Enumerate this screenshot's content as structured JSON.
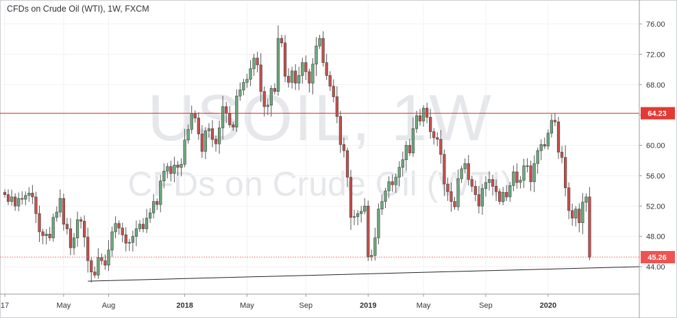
{
  "header": {
    "title": "CFDs on Crude Oil (WTI), 1W, FXCM"
  },
  "watermark": {
    "symbol": "USOIL, 1W",
    "name": "CFDs on Crude Oil (WTI)"
  },
  "chart_data": {
    "type": "candlestick",
    "title": "CFDs on Crude Oil (WTI), 1W, FXCM",
    "symbol": "USOIL",
    "interval": "1W",
    "source": "FXCM",
    "ylim": [
      40.5,
      78.0
    ],
    "y_ticks": [
      "76.00",
      "72.00",
      "68.00",
      "64.00",
      "60.00",
      "56.00",
      "52.00",
      "48.00",
      "44.00"
    ],
    "x_ticks": [
      {
        "label": "17",
        "index": 0,
        "bold": false
      },
      {
        "label": "May",
        "index": 17,
        "bold": false
      },
      {
        "label": "Aug",
        "index": 30,
        "bold": false
      },
      {
        "label": "2018",
        "index": 52,
        "bold": true
      },
      {
        "label": "May",
        "index": 70,
        "bold": false
      },
      {
        "label": "Sep",
        "index": 87,
        "bold": false
      },
      {
        "label": "2019",
        "index": 105,
        "bold": true
      },
      {
        "label": "May",
        "index": 121,
        "bold": false
      },
      {
        "label": "Sep",
        "index": 139,
        "bold": false
      },
      {
        "label": "2020",
        "index": 157,
        "bold": true
      }
    ],
    "up_color": "#6aaa7d",
    "down_color": "#c8504b",
    "wick_color": "#555555",
    "resistance": {
      "value": 64.23,
      "label": "64.23",
      "color": "#e53935"
    },
    "last_price": {
      "value": 45.26,
      "label": "45.26",
      "color": "#ef5350"
    },
    "trendline": {
      "from": {
        "index": 24,
        "value": 42.1
      },
      "to": {
        "index": 165,
        "value": 44.0
      },
      "color": "#222222"
    },
    "close_series": [
      53.5,
      52.6,
      53.2,
      52.0,
      53.0,
      52.9,
      53.4,
      53.7,
      53.2,
      51.0,
      48.6,
      48.1,
      48.3,
      47.8,
      50.5,
      51.2,
      53.0,
      49.6,
      49.0,
      46.5,
      47.8,
      50.2,
      50.0,
      47.9,
      44.8,
      43.3,
      42.9,
      45.2,
      44.8,
      44.2,
      46.2,
      48.6,
      49.7,
      49.1,
      48.2,
      47.1,
      47.2,
      48.0,
      49.0,
      49.6,
      49.0,
      50.4,
      51.1,
      52.6,
      52.2,
      55.3,
      56.6,
      57.2,
      56.3,
      57.4,
      57.1,
      57.5,
      60.7,
      62.1,
      64.2,
      63.6,
      61.5,
      59.2,
      61.9,
      62.2,
      60.8,
      60.2,
      62.3,
      65.1,
      64.2,
      62.7,
      62.4,
      66.5,
      67.3,
      68.3,
      68.7,
      70.1,
      71.5,
      70.6,
      67.1,
      65.1,
      65.3,
      67.5,
      67.1,
      74.1,
      73.5,
      69.1,
      68.3,
      69.8,
      68.2,
      69.2,
      70.9,
      69.7,
      68.2,
      70.7,
      73.1,
      74.1,
      70.9,
      69.2,
      67.8,
      66.4,
      63.8,
      60.1,
      59.3,
      55.8,
      50.5,
      50.6,
      51.0,
      51.3,
      52.0,
      45.3,
      45.5,
      47.8,
      51.6,
      52.6,
      54.0,
      55.2,
      54.8,
      55.8,
      57.1,
      58.1,
      60.0,
      59.0,
      62.2,
      63.9,
      63.2,
      64.9,
      63.7,
      61.8,
      61.0,
      60.8,
      58.8,
      54.9,
      53.9,
      52.6,
      51.9,
      55.6,
      56.9,
      57.6,
      55.5,
      54.6,
      53.5,
      52.0,
      54.3,
      55.1,
      55.5,
      54.6,
      53.9,
      52.6,
      53.8,
      53.2,
      54.7,
      56.5,
      55.1,
      55.4,
      57.3,
      57.3,
      55.2,
      57.6,
      59.3,
      60.1,
      59.9,
      61.6,
      63.3,
      63.1,
      59.1,
      58.4,
      54.4,
      51.4,
      50.4,
      51.6,
      49.8,
      52.5,
      53.2,
      45.26
    ]
  }
}
